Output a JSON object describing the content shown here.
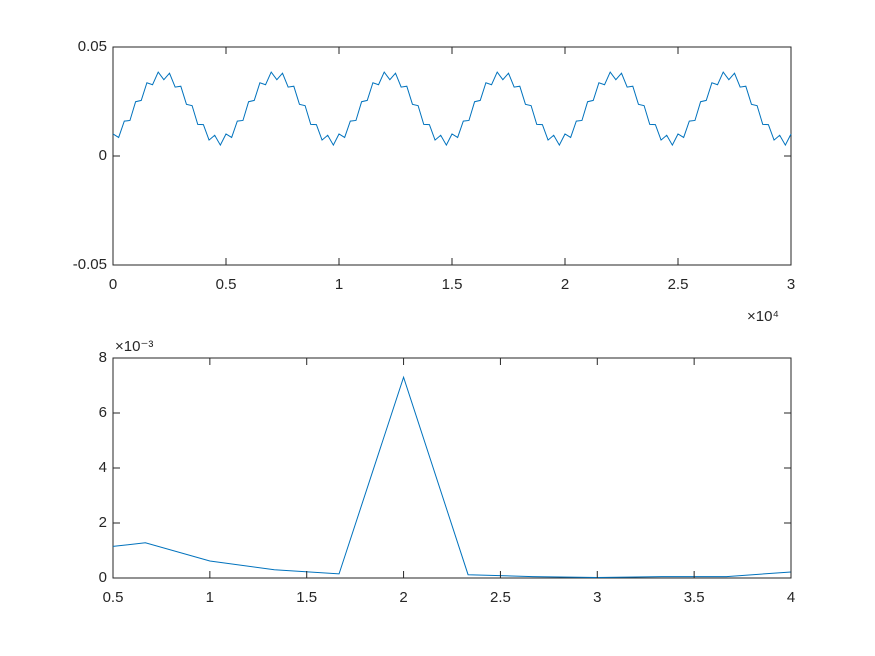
{
  "chart_data": [
    {
      "type": "line",
      "color": "#0072bd",
      "grid": false,
      "x": [
        0,
        250,
        500,
        750,
        1000,
        1250,
        1500,
        1750,
        2000,
        2250,
        2500,
        2750,
        3000,
        3250,
        3500,
        3750,
        4000,
        4250,
        4500,
        4750,
        5000,
        5250,
        5500,
        5750,
        6000,
        6250,
        6500,
        6750,
        7000,
        7250,
        7500,
        7750,
        8000,
        8250,
        8500,
        8750,
        9000,
        9250,
        9500,
        9750,
        10000,
        10250,
        10500,
        10750,
        11000,
        11250,
        11500,
        11750,
        12000,
        12250,
        12500,
        12750,
        13000,
        13250,
        13500,
        13750,
        14000,
        14250,
        14500,
        14750,
        15000,
        15250,
        15500,
        15750,
        16000,
        16250,
        16500,
        16750,
        17000,
        17250,
        17500,
        17750,
        18000,
        18250,
        18500,
        18750,
        19000,
        19250,
        19500,
        19750,
        20000,
        20250,
        20500,
        20750,
        21000,
        21250,
        21500,
        21750,
        22000,
        22250,
        22500,
        22750,
        23000,
        23250,
        23500,
        23750,
        24000,
        24250,
        24500,
        24750,
        25000,
        25250,
        25500,
        25750,
        26000,
        26250,
        26500,
        26750,
        27000,
        27250,
        27500,
        27750,
        28000,
        28250,
        28500,
        28750,
        29000,
        29250,
        29500,
        29750,
        30000
      ],
      "values": [
        0.0101,
        0.0085,
        0.016,
        0.0163,
        0.0249,
        0.0255,
        0.0336,
        0.0327,
        0.0385,
        0.035,
        0.038,
        0.0316,
        0.032,
        0.0237,
        0.0231,
        0.0145,
        0.0144,
        0.0073,
        0.0095,
        0.005,
        0.0101,
        0.0085,
        0.016,
        0.0163,
        0.0249,
        0.0255,
        0.0336,
        0.0327,
        0.0385,
        0.035,
        0.038,
        0.0316,
        0.032,
        0.0237,
        0.0231,
        0.0145,
        0.0144,
        0.0073,
        0.0095,
        0.005,
        0.0101,
        0.0085,
        0.016,
        0.0163,
        0.0249,
        0.0255,
        0.0336,
        0.0327,
        0.0385,
        0.035,
        0.038,
        0.0316,
        0.032,
        0.0237,
        0.0231,
        0.0145,
        0.0144,
        0.0073,
        0.0095,
        0.005,
        0.0101,
        0.0085,
        0.016,
        0.0163,
        0.0249,
        0.0255,
        0.0336,
        0.0327,
        0.0385,
        0.035,
        0.038,
        0.0316,
        0.032,
        0.0237,
        0.0231,
        0.0145,
        0.0144,
        0.0073,
        0.0095,
        0.005,
        0.0101,
        0.0085,
        0.016,
        0.0163,
        0.0249,
        0.0255,
        0.0336,
        0.0327,
        0.0385,
        0.035,
        0.038,
        0.0316,
        0.032,
        0.0237,
        0.0231,
        0.0145,
        0.0144,
        0.0073,
        0.0095,
        0.005,
        0.0101,
        0.0085,
        0.016,
        0.0163,
        0.0249,
        0.0255,
        0.0336,
        0.0327,
        0.0385,
        0.035,
        0.038,
        0.0316,
        0.032,
        0.0237,
        0.0231,
        0.0145,
        0.0144,
        0.0073,
        0.0095,
        0.005,
        0.0101
      ],
      "xlim": [
        0,
        30000
      ],
      "xticks": [
        0,
        {
          "value": 5000,
          "label": "0.5"
        },
        {
          "value": 10000,
          "label": "1"
        },
        {
          "value": 15000,
          "label": "1.5"
        },
        {
          "value": 20000,
          "label": "2"
        },
        {
          "value": 25000,
          "label": "2.5"
        },
        {
          "value": 30000,
          "label": "3"
        }
      ],
      "x_multiplier": "×10⁴",
      "ylim": [
        -0.05,
        0.05
      ],
      "yticks": [
        -0.05,
        0,
        0.05
      ]
    },
    {
      "type": "line",
      "color": "#0072bd",
      "grid": false,
      "x": [
        0.5,
        0.667,
        1.0,
        1.333,
        1.667,
        2.0,
        2.333,
        2.667,
        3.0,
        3.333,
        3.667,
        4.0
      ],
      "values": [
        0.00115,
        0.00128,
        0.00062,
        0.0003,
        0.00015,
        0.0073,
        0.00012,
        5e-05,
        2e-05,
        5e-05,
        5e-05,
        0.00022
      ],
      "xlim": [
        0.5,
        4
      ],
      "xticks": [
        0.5,
        1,
        1.5,
        2,
        2.5,
        3,
        3.5,
        4
      ],
      "ylim": [
        0,
        0.008
      ],
      "yticks": [
        0,
        {
          "value": 0.002,
          "label": "2"
        },
        {
          "value": 0.004,
          "label": "4"
        },
        {
          "value": 0.006,
          "label": "6"
        },
        {
          "value": 0.008,
          "label": "8"
        }
      ],
      "y_multiplier": "×10⁻³"
    }
  ]
}
